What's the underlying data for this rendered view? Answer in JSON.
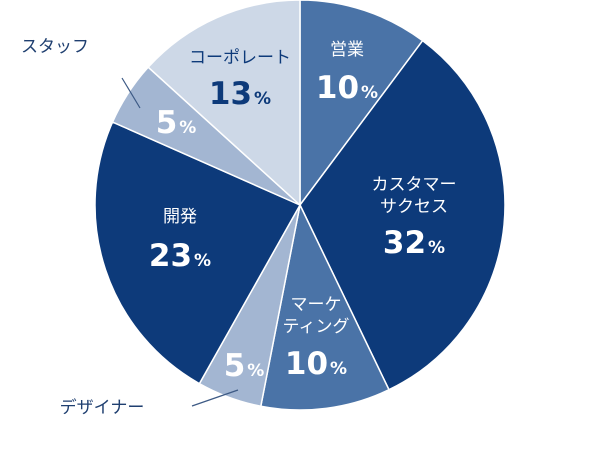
{
  "chart_data": {
    "type": "pie",
    "start_angle_deg": 0,
    "direction": "clockwise",
    "slices": [
      {
        "name": "営業",
        "value": 10,
        "color": "#4a73a7",
        "label_lines": [
          "営業"
        ],
        "pct_text": "10",
        "unit": "%",
        "label_pos": "inside"
      },
      {
        "name": "カスタマーサクセス",
        "value": 32,
        "color": "#0d3a7a",
        "label_lines": [
          "カスタマー",
          "サクセス"
        ],
        "pct_text": "32",
        "unit": "%",
        "label_pos": "inside"
      },
      {
        "name": "マーケティング",
        "value": 10,
        "color": "#4a73a7",
        "label_lines": [
          "マーケ",
          "ティング"
        ],
        "pct_text": "10",
        "unit": "%",
        "label_pos": "inside"
      },
      {
        "name": "デザイナー",
        "value": 5,
        "color": "#a3b6d2",
        "label_lines": [
          "デザイナー"
        ],
        "pct_text": "5",
        "unit": "%",
        "label_pos": "outside"
      },
      {
        "name": "開発",
        "value": 23,
        "color": "#0d3a7a",
        "label_lines": [
          "開発"
        ],
        "pct_text": "23",
        "unit": "%",
        "label_pos": "inside"
      },
      {
        "name": "スタッフ",
        "value": 5,
        "color": "#a3b6d2",
        "label_lines": [
          "スタッフ"
        ],
        "pct_text": "5",
        "unit": "%",
        "label_pos": "outside"
      },
      {
        "name": "コーポレート",
        "value": 13,
        "color": "#cdd8e7",
        "label_lines": [
          "コーポレート"
        ],
        "pct_text": "13",
        "unit": "%",
        "label_pos": "inside",
        "text_color": "#0d3a7a"
      }
    ],
    "legend": "none"
  }
}
